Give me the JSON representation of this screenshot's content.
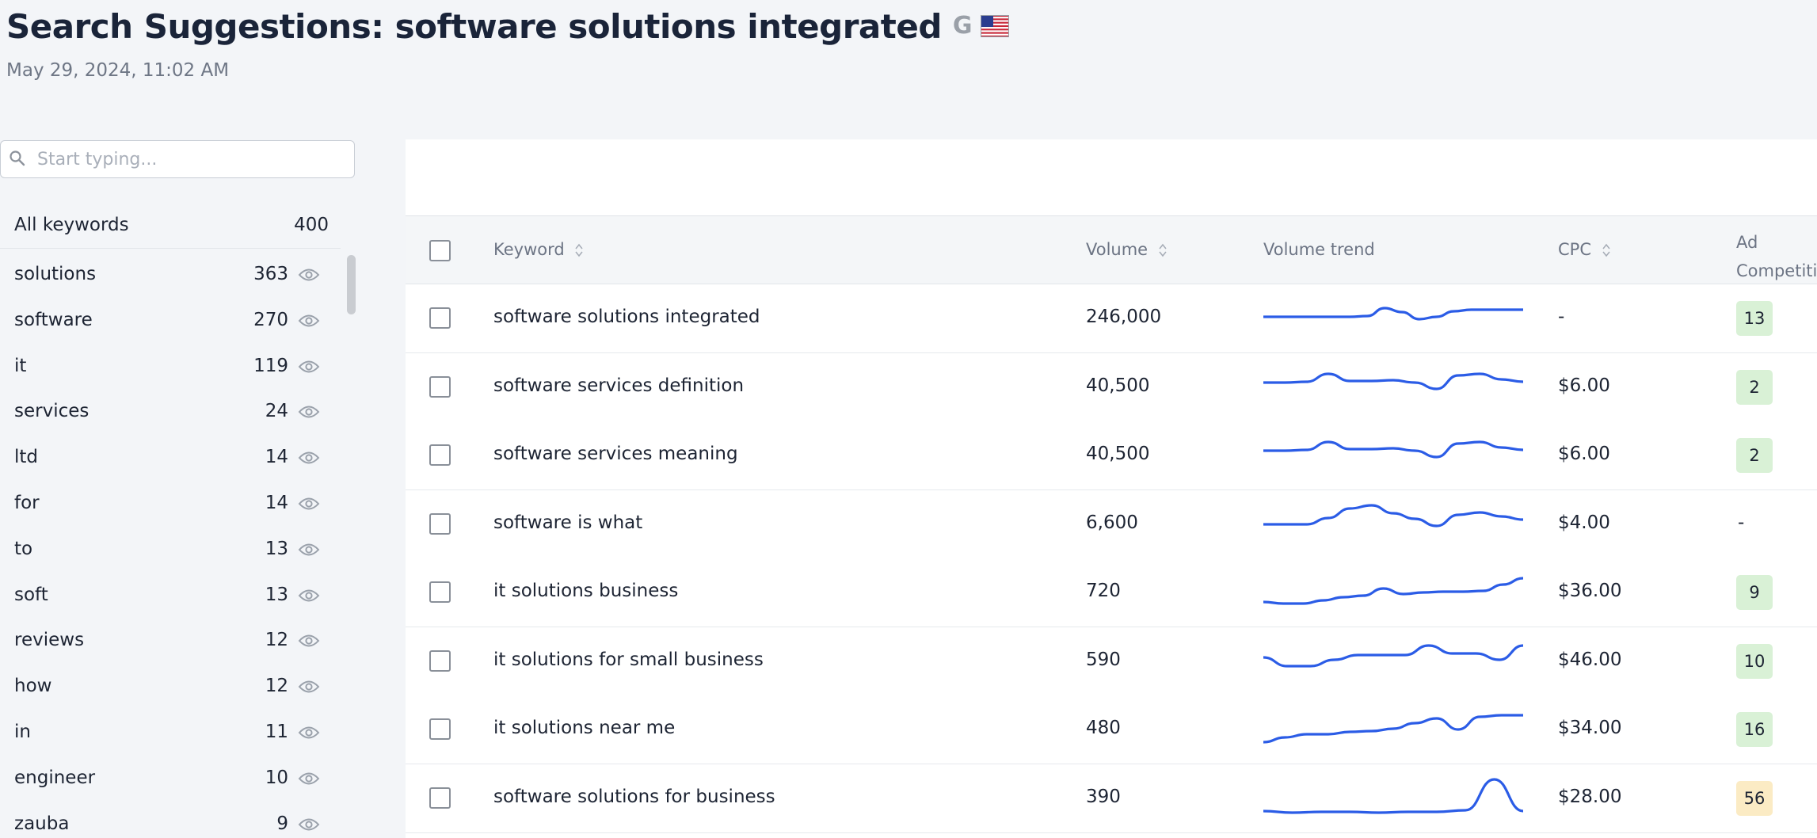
{
  "header": {
    "title": "Search Suggestions: software solutions integrated",
    "engine_icon": "google-g-icon",
    "flag_icon": "us-flag-icon",
    "timestamp": "May 29, 2024, 11:02 AM"
  },
  "sidebar": {
    "search": {
      "placeholder": "Start typing..."
    },
    "all_keywords": {
      "label": "All keywords",
      "count": "400"
    },
    "items": [
      {
        "label": "solutions",
        "count": "363"
      },
      {
        "label": "software",
        "count": "270"
      },
      {
        "label": "it",
        "count": "119"
      },
      {
        "label": "services",
        "count": "24"
      },
      {
        "label": "ltd",
        "count": "14"
      },
      {
        "label": "for",
        "count": "14"
      },
      {
        "label": "to",
        "count": "13"
      },
      {
        "label": "soft",
        "count": "13"
      },
      {
        "label": "reviews",
        "count": "12"
      },
      {
        "label": "how",
        "count": "12"
      },
      {
        "label": "in",
        "count": "11"
      },
      {
        "label": "engineer",
        "count": "10"
      },
      {
        "label": "zauba",
        "count": "9"
      }
    ]
  },
  "table": {
    "columns": {
      "keyword": "Keyword",
      "volume": "Volume",
      "trend": "Volume trend",
      "cpc": "CPC",
      "ad_line1": "Ad",
      "ad_line2": "Competiti"
    },
    "rows": [
      {
        "keyword": "software solutions integrated",
        "volume": "246,000",
        "cpc": "-",
        "ad": "13",
        "ad_level": "low",
        "trend": [
          28,
          28,
          28,
          28,
          28,
          28,
          27,
          17,
          22,
          31,
          28,
          21,
          19,
          19,
          19,
          19
        ]
      },
      {
        "keyword": "software services definition",
        "volume": "40,500",
        "cpc": "$6.00",
        "ad": "2",
        "ad_level": "low",
        "trend": [
          24,
          24,
          23,
          13,
          22,
          22,
          21,
          24,
          32,
          15,
          13,
          20,
          23
        ]
      },
      {
        "keyword": "software services meaning",
        "volume": "40,500",
        "cpc": "$6.00",
        "ad": "2",
        "ad_level": "low",
        "trend": [
          24,
          24,
          23,
          13,
          22,
          22,
          21,
          24,
          32,
          15,
          13,
          20,
          23
        ]
      },
      {
        "keyword": "software is what",
        "volume": "6,600",
        "cpc": "$4.00",
        "ad": "",
        "ad_level": "none",
        "trend": [
          30,
          30,
          30,
          22,
          10,
          6,
          16,
          23,
          32,
          18,
          15,
          20,
          24
        ]
      },
      {
        "keyword": "it solutions business",
        "volume": "720",
        "cpc": "$36.00",
        "ad": "9",
        "ad_level": "low",
        "trend": [
          42,
          44,
          44,
          40,
          36,
          34,
          25,
          32,
          30,
          29,
          29,
          28,
          20,
          12
        ]
      },
      {
        "keyword": "it solutions for small business",
        "volume": "590",
        "cpc": "$46.00",
        "ad": "10",
        "ad_level": "low",
        "trend": [
          25,
          36,
          36,
          28,
          22,
          22,
          22,
          10,
          20,
          20,
          28,
          10
        ]
      },
      {
        "keyword": "it solutions near me",
        "volume": "480",
        "cpc": "$34.00",
        "ad": "16",
        "ad_level": "low",
        "trend": [
          46,
          40,
          36,
          36,
          33,
          32,
          29,
          22,
          16,
          30,
          14,
          12,
          12
        ]
      },
      {
        "keyword": "software solutions for business",
        "volume": "390",
        "cpc": "$28.00",
        "ad": "56",
        "ad_level": "medium",
        "trend": [
          46,
          48,
          47,
          47,
          48,
          47,
          47,
          45,
          6,
          46
        ]
      }
    ]
  },
  "colors": {
    "trend_line": "#2b5ce6",
    "badge_low_bg": "#d9f1d6",
    "badge_medium_bg": "#fbebc4"
  }
}
